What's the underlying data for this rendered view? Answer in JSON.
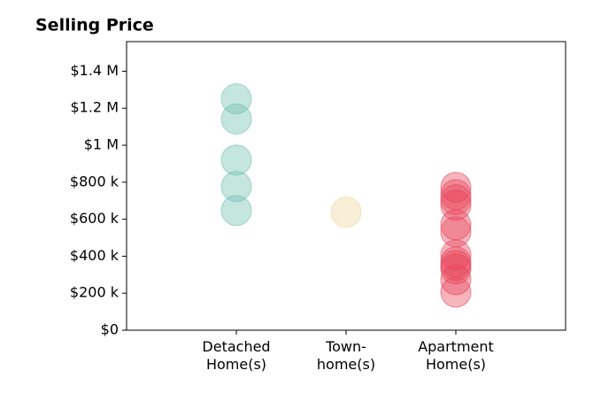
{
  "chart_data": {
    "type": "strip",
    "title": "Selling Price",
    "categories": [
      [
        "Detached",
        "Home(s)"
      ],
      [
        "Town-",
        "home(s)"
      ],
      [
        "Apartment",
        "Home(s)"
      ]
    ],
    "colors": [
      "#6fbfb0",
      "#f0d49a",
      "#e8435a"
    ],
    "values": [
      [
        1251000,
        1141000,
        920000,
        777000,
        647000
      ],
      [
        638000
      ],
      [
        772000,
        733000,
        705000,
        676000,
        570000,
        532000,
        407000,
        369000,
        350000,
        331000,
        273000,
        206000
      ]
    ],
    "ylim": [
      0,
      1560000
    ],
    "yticks": [
      {
        "value": 0,
        "label": "$0"
      },
      {
        "value": 200000,
        "label": "$200 k"
      },
      {
        "value": 400000,
        "label": "$400 k"
      },
      {
        "value": 600000,
        "label": "$600 k"
      },
      {
        "value": 800000,
        "label": "$800 k"
      },
      {
        "value": 1000000,
        "label": "$1 M"
      },
      {
        "value": 1200000,
        "label": "$1.2 M"
      },
      {
        "value": 1400000,
        "label": "$1.4 M"
      }
    ]
  }
}
